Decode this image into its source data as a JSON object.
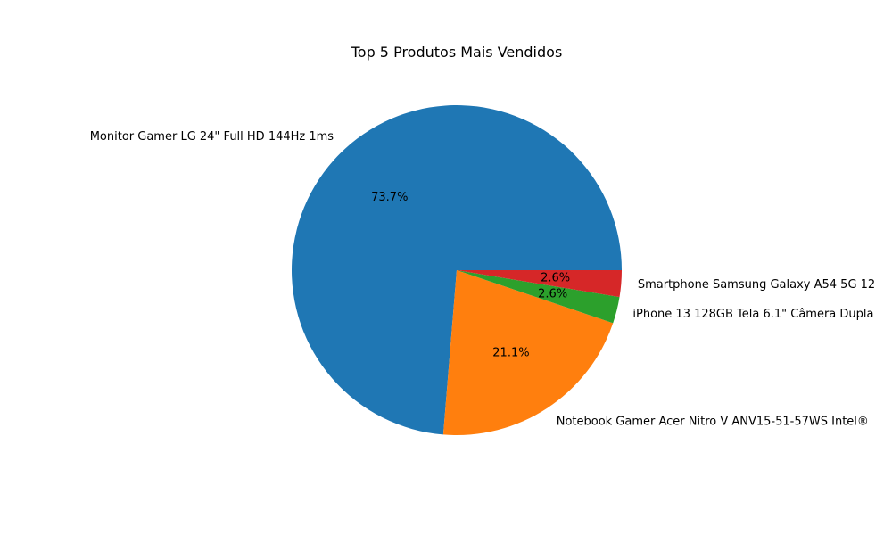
{
  "chart_data": {
    "type": "pie",
    "title": "Top 5 Produtos Mais Vendidos",
    "slices": [
      {
        "label": "Monitor Gamer LG 24\" Full HD 144Hz 1ms",
        "value": 73.7,
        "pct_label": "73.7%",
        "color": "#1f77b4"
      },
      {
        "label": "Notebook Gamer Acer Nitro V ANV15-51-57WS Intel®",
        "value": 21.1,
        "pct_label": "21.1%",
        "color": "#ff7f0e"
      },
      {
        "label": "iPhone 13 128GB Tela 6.1\" Câmera Dupla",
        "value": 2.6,
        "pct_label": "2.6%",
        "color": "#2ca02c"
      },
      {
        "label": "Smartphone Samsung Galaxy A54 5G 12",
        "value": 2.6,
        "pct_label": "2.6%",
        "color": "#d62728"
      }
    ],
    "start_angle_deg": 0,
    "direction": "counterclockwise",
    "legend": "none"
  }
}
